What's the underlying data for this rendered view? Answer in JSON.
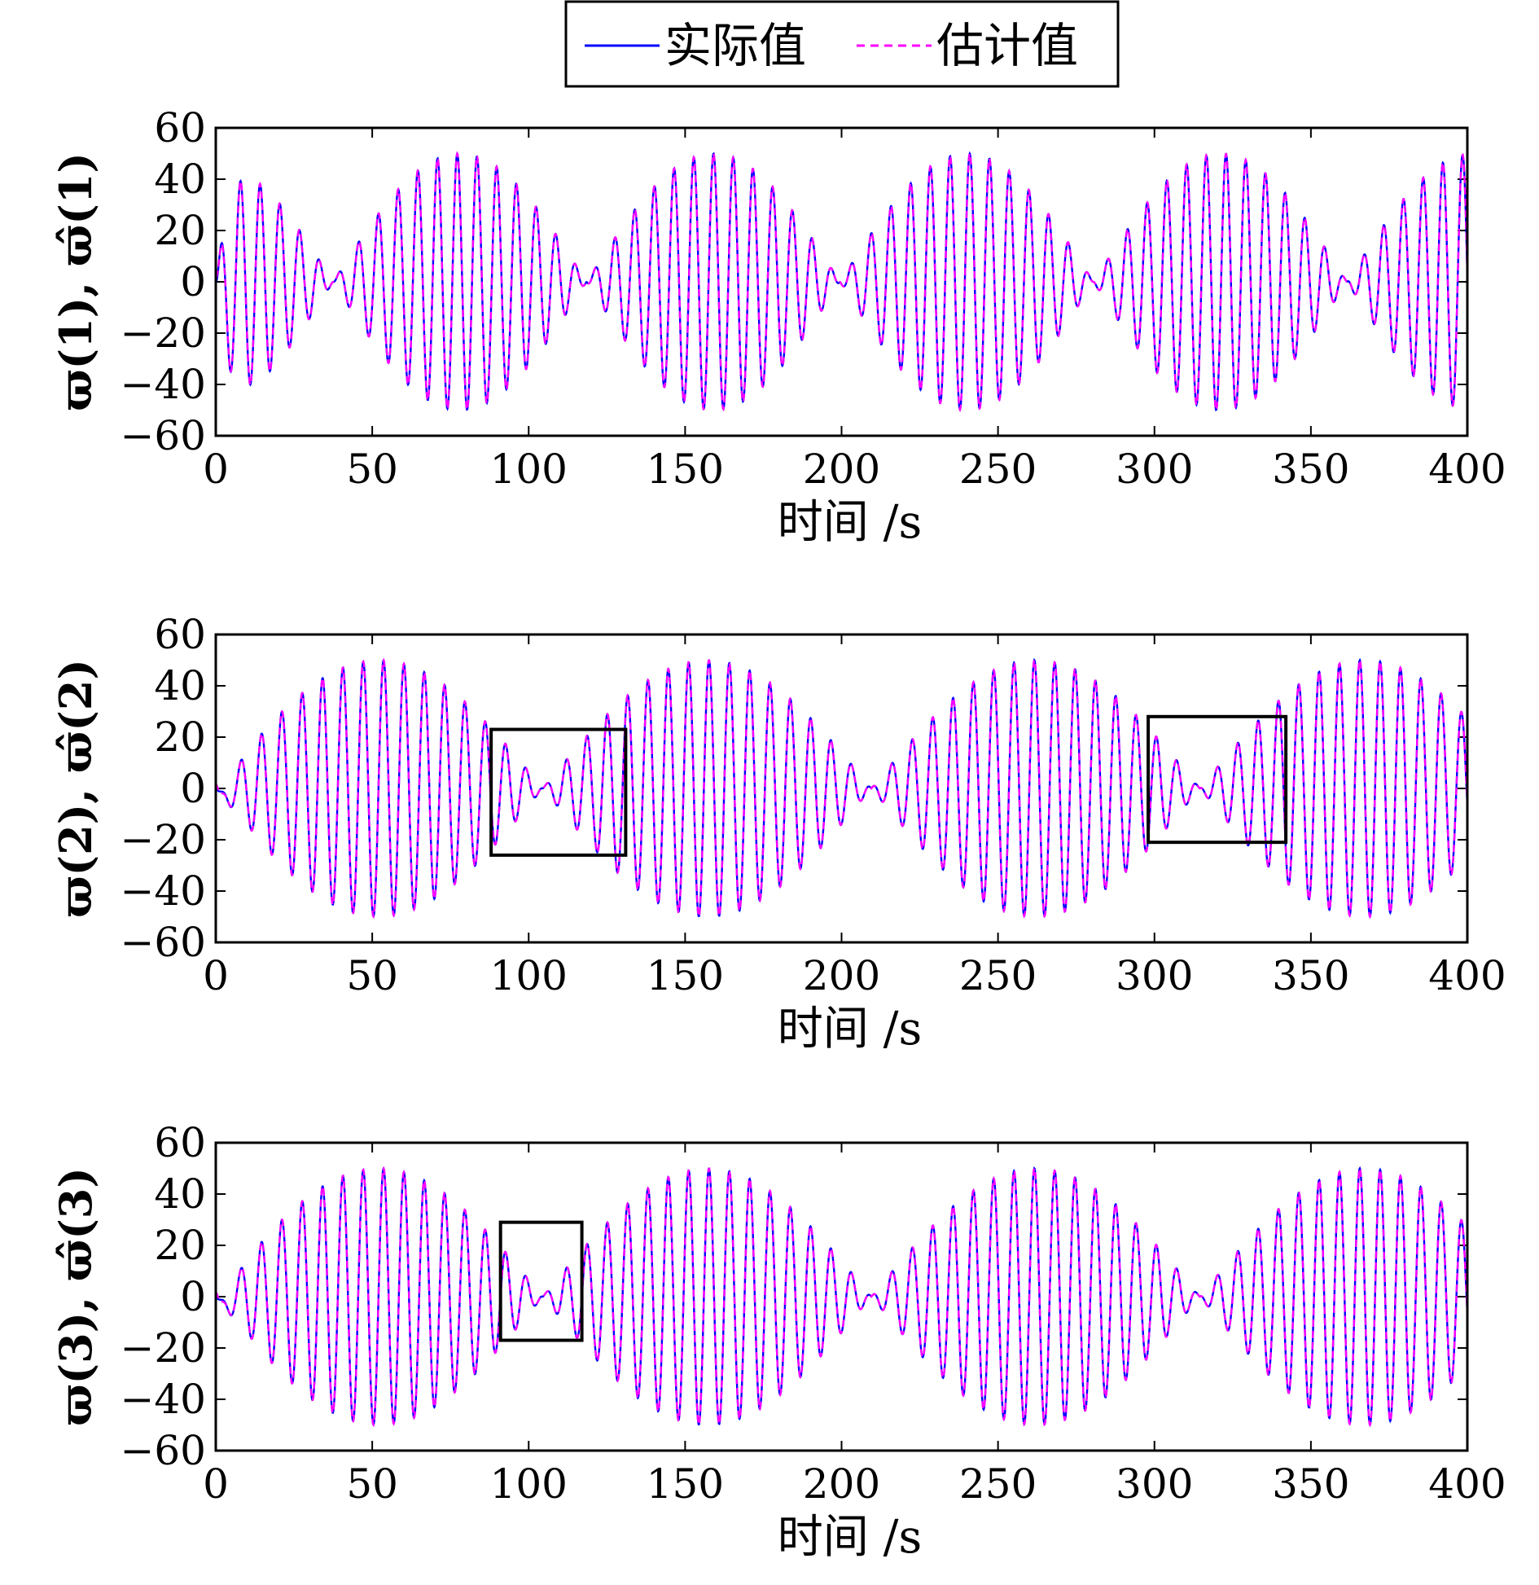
{
  "chart_data": {
    "legend": {
      "placement": "top-center",
      "entries": [
        {
          "label": "实际值",
          "color": "#0000ff",
          "style": "solid"
        },
        {
          "label": "估计值",
          "color": "#ff00ff",
          "style": "dashed"
        }
      ]
    },
    "charts": [
      {
        "type": "line",
        "ylabel": "ϖ(1), ϖ̂(1)",
        "xlabel": "时间 /s",
        "xlim": [
          0,
          400
        ],
        "ylim": [
          -60,
          60
        ],
        "xticks": [
          0,
          50,
          100,
          150,
          200,
          250,
          300,
          350,
          400
        ],
        "yticks": [
          -60,
          -40,
          -20,
          0,
          20,
          40,
          60
        ],
        "grid": false,
        "signal": {
          "amplitude_max": 50,
          "oscillation_period_s": 6.3,
          "envelope_period_s": 162,
          "envelope_peak_s": 78
        },
        "series": [
          {
            "name": "实际值",
            "color": "#0000ff"
          },
          {
            "name": "估计值",
            "color": "#ff00ff"
          }
        ],
        "highlight_boxes": []
      },
      {
        "type": "line",
        "ylabel": "ϖ(2), ϖ̂(2)",
        "xlabel": "时间 /s",
        "xlim": [
          0,
          400
        ],
        "ylim": [
          -60,
          60
        ],
        "xticks": [
          0,
          50,
          100,
          150,
          200,
          250,
          300,
          350,
          400
        ],
        "yticks": [
          -60,
          -40,
          -20,
          0,
          20,
          40,
          60
        ],
        "grid": false,
        "signal": {
          "amplitude_max": 50,
          "oscillation_period_s": 6.5,
          "envelope_period_s": 210,
          "envelope_peak_s": 52
        },
        "series": [
          {
            "name": "实际值",
            "color": "#0000ff"
          },
          {
            "name": "估计值",
            "color": "#ff00ff"
          }
        ],
        "highlight_boxes": [
          {
            "x": [
              88,
              131
            ],
            "y": [
              -26,
              23
            ]
          },
          {
            "x": [
              298,
              342
            ],
            "y": [
              -21,
              28
            ]
          }
        ]
      },
      {
        "type": "line",
        "ylabel": "ϖ(3), ϖ̂(3)",
        "xlabel": "时间 /s",
        "xlim": [
          0,
          400
        ],
        "ylim": [
          -60,
          60
        ],
        "xticks": [
          0,
          50,
          100,
          150,
          200,
          250,
          300,
          350,
          400
        ],
        "yticks": [
          -60,
          -40,
          -20,
          0,
          20,
          40,
          60
        ],
        "grid": false,
        "signal": {
          "amplitude_max": 50,
          "oscillation_period_s": 6.5,
          "envelope_period_s": 210,
          "envelope_peak_s": 52
        },
        "series": [
          {
            "name": "实际值",
            "color": "#0000ff"
          },
          {
            "name": "估计值",
            "color": "#ff00ff"
          }
        ],
        "highlight_boxes": [
          {
            "x": [
              91,
              117
            ],
            "y": [
              -17,
              29
            ]
          }
        ]
      }
    ]
  }
}
